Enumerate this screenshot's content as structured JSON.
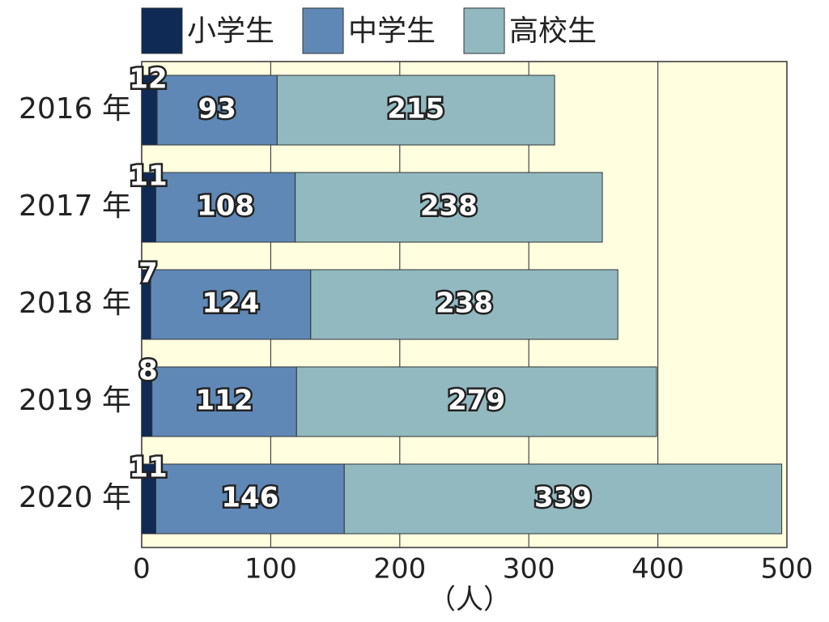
{
  "chart_data": {
    "type": "stacked-bar-horizontal",
    "categories": [
      "2016 年",
      "2017 年",
      "2018 年",
      "2019 年",
      "2020 年"
    ],
    "series": [
      {
        "name": "小学生",
        "color": "#0f2a55",
        "values": [
          12,
          11,
          7,
          8,
          11
        ]
      },
      {
        "name": "中学生",
        "color": "#5f88b6",
        "values": [
          93,
          108,
          124,
          112,
          146
        ]
      },
      {
        "name": "高校生",
        "color": "#92b9c0",
        "values": [
          215,
          238,
          238,
          279,
          339
        ]
      }
    ],
    "xlim": [
      0,
      500
    ],
    "xticks": [
      0,
      100,
      200,
      300,
      400,
      500
    ],
    "x_label": "（人）",
    "grid": true,
    "legend": "top"
  }
}
